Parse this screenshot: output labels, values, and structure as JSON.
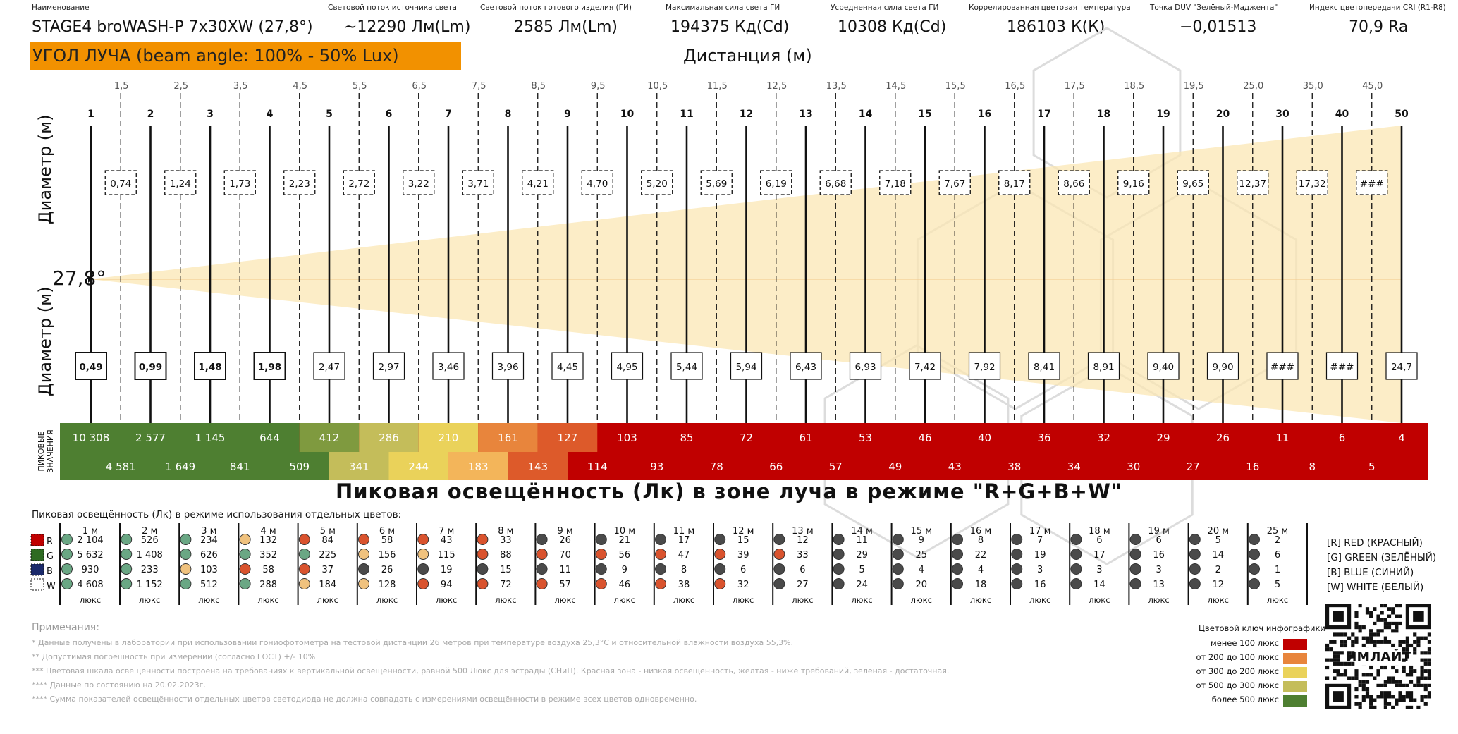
{
  "header": {
    "name_label": "Наименование",
    "name_value": "STAGE4 broWASH-P 7x30XW (27,8°)",
    "stats": [
      {
        "label": "Световой поток источника света",
        "value": "~12290 Лм(Lm)"
      },
      {
        "label": "Световой поток готового изделия (ГИ)",
        "value": "2585 Лм(Lm)"
      },
      {
        "label": "Максимальная сила света ГИ",
        "value": "194375 Кд(Cd)"
      },
      {
        "label": "Усредненная сила света ГИ",
        "value": "10308 Кд(Cd)"
      },
      {
        "label": "Коррелированная цветовая температура",
        "value": "186103 К(К)"
      },
      {
        "label": "Точка DUV \"Зелёный-Маджента\"",
        "value": "−0,01513"
      },
      {
        "label": "Индекс цветопередачи CRI (R1-R8)",
        "value": "70,9 Ra"
      }
    ]
  },
  "beam_banner": "УГОЛ ЛУЧА (beam angle: 100% - 50% Lux)",
  "distance_title": "Дистанция (м)",
  "diameter_label": "Диаметр (м)",
  "angle_label": "27,8°",
  "peak_side_label_1": "ПИКОВЫЕ",
  "peak_side_label_2": "ЗНАЧЕНИЯ",
  "colors": {
    "green": "#4e7f31",
    "olive": "#7f9a3f",
    "khaki": "#c4bd5a",
    "yellow": "#ead25a",
    "amber": "#f3b55a",
    "orange": "#e8853c",
    "deep_orange": "#dd5a2a",
    "red": "#c00000",
    "banner": "#f29100",
    "beam_fill": "#fbe7b4"
  },
  "chart_data": {
    "type": "table",
    "solid_distances": [
      "1",
      "2",
      "3",
      "4",
      "5",
      "6",
      "7",
      "8",
      "9",
      "10",
      "11",
      "12",
      "13",
      "14",
      "15",
      "16",
      "17",
      "18",
      "19",
      "20",
      "30",
      "40",
      "50"
    ],
    "dashed_distances": [
      "1,5",
      "2,5",
      "3,5",
      "4,5",
      "5,5",
      "6,5",
      "7,5",
      "8,5",
      "9,5",
      "10,5",
      "11,5",
      "12,5",
      "13,5",
      "14,5",
      "15,5",
      "16,5",
      "17,5",
      "18,5",
      "19,5",
      "25,0",
      "35,0",
      "45,0"
    ],
    "diameters_at_dashed": [
      "0,74",
      "1,24",
      "1,73",
      "2,23",
      "2,72",
      "3,22",
      "3,71",
      "4,21",
      "4,70",
      "5,20",
      "5,69",
      "6,19",
      "6,68",
      "7,18",
      "7,67",
      "8,17",
      "8,66",
      "9,16",
      "9,65",
      "12,37",
      "17,32",
      "###"
    ],
    "diameters_at_solid": [
      "0,49",
      "0,99",
      "1,48",
      "1,98",
      "2,47",
      "2,97",
      "3,46",
      "3,96",
      "4,45",
      "4,95",
      "5,44",
      "5,94",
      "6,43",
      "6,93",
      "7,42",
      "7,92",
      "8,41",
      "8,91",
      "9,40",
      "9,90",
      "###",
      "###",
      "24,7"
    ],
    "peak_at_solid": [
      "10 308",
      "2 577",
      "1 145",
      "644",
      "412",
      "286",
      "210",
      "161",
      "127",
      "103",
      "85",
      "72",
      "61",
      "53",
      "46",
      "40",
      "36",
      "32",
      "29",
      "26",
      "11",
      "6",
      "4"
    ],
    "peak_at_dashed": [
      "4 581",
      "1 649",
      "841",
      "509",
      "341",
      "244",
      "183",
      "143",
      "114",
      "93",
      "78",
      "66",
      "57",
      "49",
      "43",
      "38",
      "34",
      "30",
      "27",
      "16",
      "8",
      "5"
    ],
    "title": "Пиковая освещённость (Лк) в зоне луча в режиме \"R+G+B+W\""
  },
  "separate_colors": {
    "title": "Пиковая освещённость (Лк) в режиме использования отдельных цветов:",
    "channels": [
      "R",
      "G",
      "B",
      "W"
    ],
    "unit": "люкс",
    "columns": [
      {
        "d": "1 м",
        "v": [
          "2 104",
          "5 632",
          "930",
          "4 608"
        ],
        "c": [
          "g",
          "g",
          "g",
          "g"
        ]
      },
      {
        "d": "2 м",
        "v": [
          "526",
          "1 408",
          "233",
          "1 152"
        ],
        "c": [
          "g",
          "g",
          "g",
          "g"
        ]
      },
      {
        "d": "3 м",
        "v": [
          "234",
          "626",
          "103",
          "512"
        ],
        "c": [
          "g",
          "g",
          "y",
          "g"
        ]
      },
      {
        "d": "4 м",
        "v": [
          "132",
          "352",
          "58",
          "288"
        ],
        "c": [
          "y",
          "g",
          "r",
          "g"
        ]
      },
      {
        "d": "5 м",
        "v": [
          "84",
          "225",
          "37",
          "184"
        ],
        "c": [
          "r",
          "g",
          "r",
          "y"
        ]
      },
      {
        "d": "6 м",
        "v": [
          "58",
          "156",
          "26",
          "128"
        ],
        "c": [
          "r",
          "y",
          "k",
          "y"
        ]
      },
      {
        "d": "7 м",
        "v": [
          "43",
          "115",
          "19",
          "94"
        ],
        "c": [
          "r",
          "y",
          "k",
          "r"
        ]
      },
      {
        "d": "8 м",
        "v": [
          "33",
          "88",
          "15",
          "72"
        ],
        "c": [
          "r",
          "r",
          "k",
          "r"
        ]
      },
      {
        "d": "9 м",
        "v": [
          "26",
          "70",
          "11",
          "57"
        ],
        "c": [
          "k",
          "r",
          "k",
          "r"
        ]
      },
      {
        "d": "10 м",
        "v": [
          "21",
          "56",
          "9",
          "46"
        ],
        "c": [
          "k",
          "r",
          "k",
          "r"
        ]
      },
      {
        "d": "11 м",
        "v": [
          "17",
          "47",
          "8",
          "38"
        ],
        "c": [
          "k",
          "r",
          "k",
          "r"
        ]
      },
      {
        "d": "12 м",
        "v": [
          "15",
          "39",
          "6",
          "32"
        ],
        "c": [
          "k",
          "r",
          "k",
          "r"
        ]
      },
      {
        "d": "13 м",
        "v": [
          "12",
          "33",
          "6",
          "27"
        ],
        "c": [
          "k",
          "r",
          "k",
          "k"
        ]
      },
      {
        "d": "14 м",
        "v": [
          "11",
          "29",
          "5",
          "24"
        ],
        "c": [
          "k",
          "k",
          "k",
          "k"
        ]
      },
      {
        "d": "15 м",
        "v": [
          "9",
          "25",
          "4",
          "20"
        ],
        "c": [
          "k",
          "k",
          "k",
          "k"
        ]
      },
      {
        "d": "16 м",
        "v": [
          "8",
          "22",
          "4",
          "18"
        ],
        "c": [
          "k",
          "k",
          "k",
          "k"
        ]
      },
      {
        "d": "17 м",
        "v": [
          "7",
          "19",
          "3",
          "16"
        ],
        "c": [
          "k",
          "k",
          "k",
          "k"
        ]
      },
      {
        "d": "18 м",
        "v": [
          "6",
          "17",
          "3",
          "14"
        ],
        "c": [
          "k",
          "k",
          "k",
          "k"
        ]
      },
      {
        "d": "19 м",
        "v": [
          "6",
          "16",
          "3",
          "13"
        ],
        "c": [
          "k",
          "k",
          "k",
          "k"
        ]
      },
      {
        "d": "20 м",
        "v": [
          "5",
          "14",
          "2",
          "12"
        ],
        "c": [
          "k",
          "k",
          "k",
          "k"
        ]
      },
      {
        "d": "25 м",
        "v": [
          "2",
          "6",
          "1",
          "5"
        ],
        "c": [
          "k",
          "k",
          "k",
          "k"
        ]
      }
    ],
    "legend": [
      "[R] RED (КРАСНЫЙ)",
      "[G] GREEN (ЗЕЛЁНЫЙ)",
      "[B] BLUE (СИНИЙ)",
      "[W] WHITE (БЕЛЫЙ)"
    ]
  },
  "notes": {
    "heading": "Примечания:",
    "lines": [
      "* Данные получены в лаборатории при использовании гониофотометра на тестовой дистанции 26 метров при температуре воздуха 25,3°С и относительной влажности воздуха 55,3%.",
      "** Допустимая погрешность при измерении (согласно ГОСТ) +/- 10%",
      "*** Цветовая шкала освещенности построена на требованиях к вертикальной освещенности, равной 500 Люкс для эстрады (СНиП). Красная зона - низкая освещенность, желтая - ниже требований, зеленая - достаточная.",
      "**** Данные по состоянию на 20.02.2023г.",
      "**** Сумма показателей освещённости отдельных цветов светодиода не должна совпадать с измерениями освещённости в режиме всех цветов одновременно."
    ]
  },
  "color_key": {
    "title": "Цветовой ключ инфографики",
    "rows": [
      "менее 100 люкс",
      "от 200 до 100 люкс",
      "от 300 до 200 люкс",
      "от 500 до 300 люкс",
      "более 500 люкс"
    ]
  },
  "qr_icon": "qr-code-icon",
  "qr_text": "ИМЛАЙТ"
}
